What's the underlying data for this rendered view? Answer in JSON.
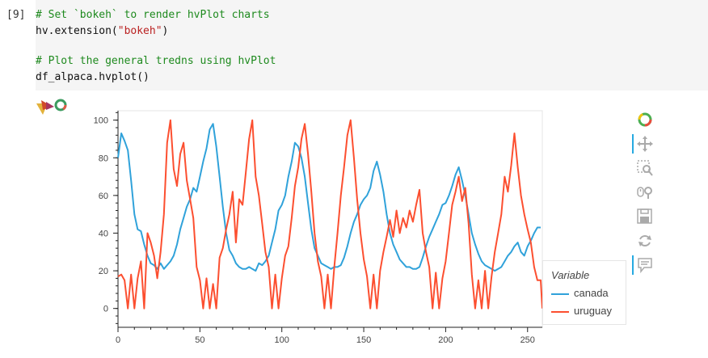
{
  "cell": {
    "prompt": "[9]",
    "lines": [
      {
        "type": "comment",
        "text": "# Set `bokeh` to render hvPlot charts"
      },
      {
        "type": "call",
        "pre": "hv.extension(",
        "str": "\"bokeh\"",
        "post": ")"
      },
      {
        "type": "blank",
        "text": ""
      },
      {
        "type": "comment",
        "text": "# Plot the general tredns using hvPlot"
      },
      {
        "type": "code",
        "text": "df_alpaca.hvplot()"
      }
    ]
  },
  "toolbar": {
    "tools": [
      {
        "icon": "bokeh-logo-icon",
        "active": false
      },
      {
        "icon": "pan-tool-icon",
        "active": true
      },
      {
        "icon": "box-zoom-tool-icon",
        "active": false
      },
      {
        "icon": "wheel-zoom-tool-icon",
        "active": false
      },
      {
        "icon": "save-tool-icon",
        "active": false
      },
      {
        "icon": "reset-tool-icon",
        "active": false
      },
      {
        "icon": "hover-tool-icon",
        "active": true
      }
    ]
  },
  "legend": {
    "title": "Variable",
    "items": [
      {
        "label": "canada",
        "color": "#30a2da"
      },
      {
        "label": "uruguay",
        "color": "#fc4f30"
      }
    ]
  },
  "chart_data": {
    "type": "line",
    "xlim": [
      0,
      259
    ],
    "ylim": [
      -10,
      105
    ],
    "xticks": [
      0,
      50,
      100,
      150,
      200,
      250
    ],
    "yticks": [
      0,
      20,
      40,
      60,
      80,
      100
    ],
    "grid": false,
    "legend_position": "right",
    "series": [
      {
        "name": "canada",
        "color": "#30a2da",
        "points": [
          [
            0,
            80
          ],
          [
            2,
            93
          ],
          [
            4,
            89
          ],
          [
            6,
            84
          ],
          [
            8,
            68
          ],
          [
            10,
            50
          ],
          [
            12,
            42
          ],
          [
            14,
            41
          ],
          [
            16,
            34
          ],
          [
            18,
            28
          ],
          [
            20,
            24
          ],
          [
            22,
            23
          ],
          [
            24,
            21
          ],
          [
            26,
            24
          ],
          [
            28,
            21
          ],
          [
            30,
            23
          ],
          [
            32,
            25
          ],
          [
            34,
            28
          ],
          [
            36,
            34
          ],
          [
            38,
            42
          ],
          [
            40,
            48
          ],
          [
            42,
            54
          ],
          [
            44,
            58
          ],
          [
            46,
            64
          ],
          [
            48,
            62
          ],
          [
            50,
            70
          ],
          [
            52,
            78
          ],
          [
            54,
            85
          ],
          [
            56,
            95
          ],
          [
            58,
            98
          ],
          [
            60,
            86
          ],
          [
            62,
            70
          ],
          [
            64,
            54
          ],
          [
            66,
            40
          ],
          [
            68,
            31
          ],
          [
            70,
            28
          ],
          [
            72,
            24
          ],
          [
            74,
            22
          ],
          [
            76,
            21
          ],
          [
            78,
            21
          ],
          [
            80,
            22
          ],
          [
            82,
            21
          ],
          [
            84,
            20
          ],
          [
            86,
            24
          ],
          [
            88,
            23
          ],
          [
            90,
            25
          ],
          [
            92,
            28
          ],
          [
            94,
            35
          ],
          [
            96,
            42
          ],
          [
            98,
            52
          ],
          [
            100,
            55
          ],
          [
            102,
            60
          ],
          [
            104,
            70
          ],
          [
            106,
            78
          ],
          [
            108,
            88
          ],
          [
            110,
            86
          ],
          [
            112,
            80
          ],
          [
            114,
            70
          ],
          [
            116,
            56
          ],
          [
            118,
            42
          ],
          [
            120,
            32
          ],
          [
            122,
            28
          ],
          [
            124,
            24
          ],
          [
            126,
            23
          ],
          [
            128,
            22
          ],
          [
            130,
            21
          ],
          [
            132,
            22
          ],
          [
            134,
            22
          ],
          [
            136,
            23
          ],
          [
            138,
            27
          ],
          [
            140,
            33
          ],
          [
            142,
            40
          ],
          [
            144,
            46
          ],
          [
            146,
            50
          ],
          [
            148,
            55
          ],
          [
            150,
            58
          ],
          [
            152,
            60
          ],
          [
            154,
            64
          ],
          [
            156,
            73
          ],
          [
            158,
            78
          ],
          [
            160,
            71
          ],
          [
            162,
            62
          ],
          [
            164,
            50
          ],
          [
            166,
            40
          ],
          [
            168,
            34
          ],
          [
            170,
            30
          ],
          [
            172,
            26
          ],
          [
            174,
            24
          ],
          [
            176,
            22
          ],
          [
            178,
            22
          ],
          [
            180,
            21
          ],
          [
            182,
            21
          ],
          [
            184,
            22
          ],
          [
            186,
            27
          ],
          [
            188,
            33
          ],
          [
            190,
            38
          ],
          [
            192,
            42
          ],
          [
            194,
            46
          ],
          [
            196,
            50
          ],
          [
            198,
            55
          ],
          [
            200,
            56
          ],
          [
            202,
            60
          ],
          [
            204,
            65
          ],
          [
            206,
            71
          ],
          [
            208,
            75
          ],
          [
            210,
            68
          ],
          [
            212,
            60
          ],
          [
            214,
            50
          ],
          [
            216,
            40
          ],
          [
            218,
            34
          ],
          [
            220,
            29
          ],
          [
            222,
            25
          ],
          [
            224,
            23
          ],
          [
            226,
            22
          ],
          [
            228,
            21
          ],
          [
            230,
            20
          ],
          [
            232,
            21
          ],
          [
            234,
            22
          ],
          [
            236,
            25
          ],
          [
            238,
            28
          ],
          [
            240,
            30
          ],
          [
            242,
            33
          ],
          [
            244,
            35
          ],
          [
            246,
            30
          ],
          [
            248,
            28
          ],
          [
            250,
            33
          ],
          [
            252,
            36
          ],
          [
            254,
            40
          ],
          [
            256,
            43
          ],
          [
            258,
            43
          ]
        ]
      },
      {
        "name": "uruguay",
        "color": "#fc4f30",
        "points": [
          [
            0,
            17
          ],
          [
            2,
            18
          ],
          [
            4,
            15
          ],
          [
            6,
            0
          ],
          [
            8,
            18
          ],
          [
            10,
            0
          ],
          [
            12,
            16
          ],
          [
            14,
            25
          ],
          [
            16,
            0
          ],
          [
            18,
            40
          ],
          [
            20,
            35
          ],
          [
            22,
            28
          ],
          [
            24,
            16
          ],
          [
            26,
            30
          ],
          [
            28,
            50
          ],
          [
            30,
            88
          ],
          [
            32,
            100
          ],
          [
            34,
            74
          ],
          [
            36,
            65
          ],
          [
            38,
            82
          ],
          [
            40,
            88
          ],
          [
            42,
            68
          ],
          [
            44,
            58
          ],
          [
            46,
            48
          ],
          [
            48,
            22
          ],
          [
            50,
            15
          ],
          [
            52,
            0
          ],
          [
            54,
            16
          ],
          [
            56,
            0
          ],
          [
            58,
            13
          ],
          [
            60,
            0
          ],
          [
            62,
            27
          ],
          [
            64,
            32
          ],
          [
            66,
            42
          ],
          [
            68,
            50
          ],
          [
            70,
            62
          ],
          [
            72,
            35
          ],
          [
            74,
            58
          ],
          [
            76,
            55
          ],
          [
            78,
            72
          ],
          [
            80,
            90
          ],
          [
            82,
            100
          ],
          [
            84,
            70
          ],
          [
            86,
            60
          ],
          [
            88,
            45
          ],
          [
            90,
            30
          ],
          [
            92,
            22
          ],
          [
            94,
            0
          ],
          [
            96,
            18
          ],
          [
            98,
            0
          ],
          [
            100,
            16
          ],
          [
            102,
            28
          ],
          [
            104,
            33
          ],
          [
            106,
            48
          ],
          [
            108,
            65
          ],
          [
            110,
            75
          ],
          [
            112,
            90
          ],
          [
            114,
            98
          ],
          [
            116,
            82
          ],
          [
            118,
            62
          ],
          [
            120,
            40
          ],
          [
            122,
            25
          ],
          [
            124,
            17
          ],
          [
            126,
            0
          ],
          [
            128,
            18
          ],
          [
            130,
            0
          ],
          [
            132,
            22
          ],
          [
            134,
            40
          ],
          [
            136,
            60
          ],
          [
            138,
            75
          ],
          [
            140,
            92
          ],
          [
            142,
            100
          ],
          [
            144,
            80
          ],
          [
            146,
            58
          ],
          [
            148,
            40
          ],
          [
            150,
            26
          ],
          [
            152,
            17
          ],
          [
            154,
            0
          ],
          [
            156,
            18
          ],
          [
            158,
            0
          ],
          [
            160,
            20
          ],
          [
            162,
            30
          ],
          [
            164,
            38
          ],
          [
            166,
            47
          ],
          [
            168,
            38
          ],
          [
            170,
            52
          ],
          [
            172,
            40
          ],
          [
            174,
            48
          ],
          [
            176,
            43
          ],
          [
            178,
            52
          ],
          [
            180,
            46
          ],
          [
            182,
            55
          ],
          [
            184,
            63
          ],
          [
            186,
            40
          ],
          [
            188,
            30
          ],
          [
            190,
            22
          ],
          [
            192,
            0
          ],
          [
            194,
            19
          ],
          [
            196,
            0
          ],
          [
            198,
            16
          ],
          [
            200,
            25
          ],
          [
            202,
            40
          ],
          [
            204,
            55
          ],
          [
            206,
            62
          ],
          [
            208,
            70
          ],
          [
            210,
            57
          ],
          [
            212,
            64
          ],
          [
            214,
            45
          ],
          [
            216,
            18
          ],
          [
            218,
            0
          ],
          [
            220,
            15
          ],
          [
            222,
            0
          ],
          [
            224,
            20
          ],
          [
            226,
            0
          ],
          [
            228,
            17
          ],
          [
            230,
            30
          ],
          [
            232,
            40
          ],
          [
            234,
            50
          ],
          [
            236,
            70
          ],
          [
            238,
            62
          ],
          [
            240,
            76
          ],
          [
            242,
            93
          ],
          [
            244,
            75
          ],
          [
            246,
            60
          ],
          [
            248,
            50
          ],
          [
            250,
            42
          ],
          [
            252,
            35
          ],
          [
            254,
            22
          ],
          [
            256,
            15
          ],
          [
            258,
            15
          ],
          [
            259,
            0
          ]
        ]
      }
    ]
  }
}
